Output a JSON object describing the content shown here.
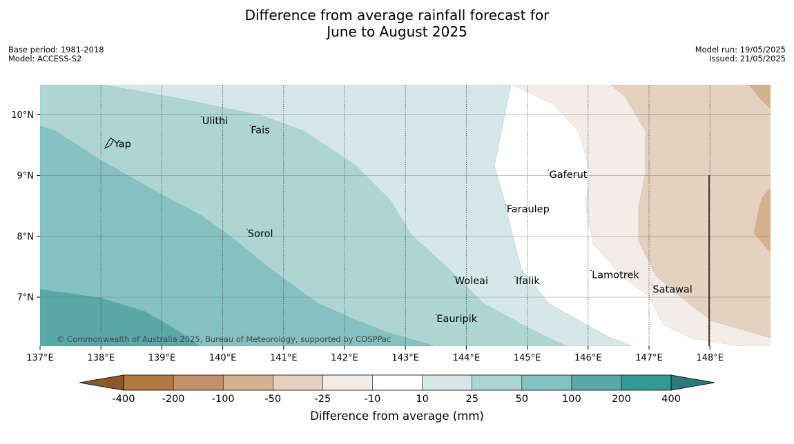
{
  "title": {
    "line1": "Difference from average rainfall forecast for",
    "line2": "June to August 2025"
  },
  "meta_left": {
    "base_period": "Base period: 1981-2018",
    "model": "Model: ACCESS-S2"
  },
  "meta_right": {
    "model_run": "Model run: 19/05/2025",
    "issued": "Issued: 21/05/2025"
  },
  "copyright": "© Commonwealth of Australia 2025, Bureau of Meteorology, supported by COSPPac",
  "map": {
    "lon_range": [
      137,
      149
    ],
    "lat_range": [
      6.2,
      10.5
    ],
    "lon_ticks": [
      {
        "value": 137,
        "label": "137°E"
      },
      {
        "value": 138,
        "label": "138°E"
      },
      {
        "value": 139,
        "label": "139°E"
      },
      {
        "value": 140,
        "label": "140°E"
      },
      {
        "value": 141,
        "label": "141°E"
      },
      {
        "value": 142,
        "label": "142°E"
      },
      {
        "value": 143,
        "label": "143°E"
      },
      {
        "value": 144,
        "label": "144°E"
      },
      {
        "value": 145,
        "label": "145°E"
      },
      {
        "value": 146,
        "label": "146°E"
      },
      {
        "value": 147,
        "label": "147°E"
      },
      {
        "value": 148,
        "label": "148°E"
      }
    ],
    "lat_ticks": [
      {
        "value": 10,
        "label": "10°N"
      },
      {
        "value": 9,
        "label": "9°N"
      },
      {
        "value": 8,
        "label": "8°N"
      },
      {
        "value": 7,
        "label": "7°N"
      }
    ],
    "places": [
      {
        "name": "Yap",
        "lon": 138.2,
        "lat": 9.52
      },
      {
        "name": "Ulithi",
        "lon": 139.65,
        "lat": 9.9
      },
      {
        "name": "Fais",
        "lon": 140.45,
        "lat": 9.75
      },
      {
        "name": "Gaferut",
        "lon": 145.35,
        "lat": 9.02
      },
      {
        "name": "Faraulep",
        "lon": 144.65,
        "lat": 8.45
      },
      {
        "name": "Sorol",
        "lon": 140.4,
        "lat": 8.05
      },
      {
        "name": "Lamotrek",
        "lon": 146.05,
        "lat": 7.37
      },
      {
        "name": "Woleai",
        "lon": 143.8,
        "lat": 7.27
      },
      {
        "name": "Ifalik",
        "lon": 144.8,
        "lat": 7.27
      },
      {
        "name": "Satawal",
        "lon": 147.05,
        "lat": 7.13
      },
      {
        "name": "Eauripik",
        "lon": 143.5,
        "lat": 6.65
      }
    ]
  },
  "colorbar": {
    "label": "Difference from average (mm)",
    "tick_labels": [
      "-400",
      "-200",
      "-100",
      "-50",
      "-25",
      "-10",
      "10",
      "25",
      "50",
      "100",
      "200",
      "400"
    ],
    "colors": {
      "under": "#8c5a2a",
      "bins": [
        "#b07a40",
        "#c4926a",
        "#d4b18f",
        "#e4d1c0",
        "#f4ece7",
        "#ffffff",
        "#d5e8e7",
        "#aed5d4",
        "#85c1c0",
        "#5aa9a8",
        "#339a98"
      ],
      "over": "#2d7878"
    }
  }
}
